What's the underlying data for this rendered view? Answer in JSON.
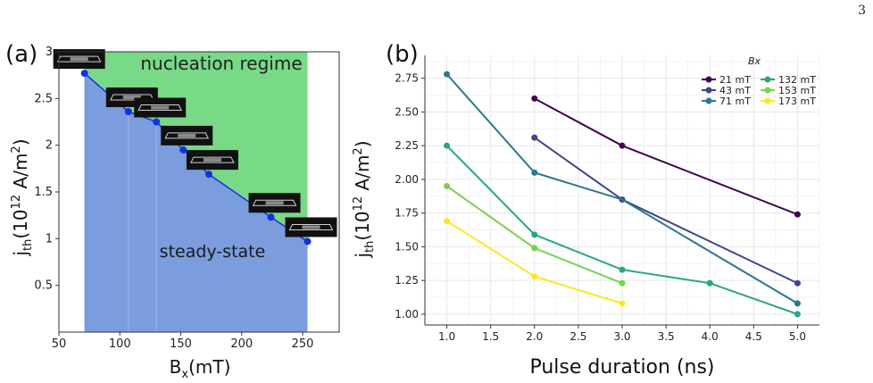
{
  "page_number": "3",
  "chart_data": [
    {
      "panel": "(a)",
      "type": "area",
      "xlabel": "B",
      "xlabel_sub": "x",
      "xlabel_unit": "(mT)",
      "ylabel": "j",
      "ylabel_sub": "th",
      "ylabel_unit": "(10",
      "ylabel_exp": "12",
      "ylabel_unit2": " A/m",
      "ylabel_exp2": "2",
      "ylabel_close": ")",
      "xlim": [
        50,
        280
      ],
      "ylim": [
        0,
        3.0
      ],
      "xticks": [
        "50",
        "100",
        "150",
        "200",
        "250"
      ],
      "yticks": [
        "0.5",
        "1",
        "1.5",
        "2",
        "2.5",
        "3"
      ],
      "upper_region_label": "nucleation regime",
      "lower_region_label": "steady-state",
      "upper_color": "#78d987",
      "lower_color": "#7b9ddd",
      "line_color": "#1530e0",
      "x": [
        71,
        107,
        130,
        152,
        173,
        224,
        254
      ],
      "y": [
        2.77,
        2.36,
        2.25,
        1.95,
        1.69,
        1.23,
        0.97
      ]
    },
    {
      "panel": "(b)",
      "type": "line",
      "xlabel": "Pulse duration (ns)",
      "ylabel": "j",
      "ylabel_sub": "th",
      "ylabel_unit": "(10",
      "ylabel_exp": "12",
      "ylabel_unit2": " A/m",
      "ylabel_exp2": "2",
      "ylabel_close": ")",
      "xlim": [
        0.75,
        5.25
      ],
      "ylim": [
        0.92,
        2.92
      ],
      "xticks": [
        "1.0",
        "1.5",
        "2.0",
        "2.5",
        "3.0",
        "3.5",
        "4.0",
        "4.5",
        "5.0"
      ],
      "yticks": [
        "1.00",
        "1.25",
        "1.50",
        "1.75",
        "2.00",
        "2.25",
        "2.50",
        "2.75"
      ],
      "grid": true,
      "legend_title": "Bx",
      "legend_position": "top-right",
      "series": [
        {
          "name": "21 mT",
          "color": "#440154",
          "x": [
            2,
            3,
            5
          ],
          "y": [
            2.6,
            2.25,
            1.74
          ]
        },
        {
          "name": "43 mT",
          "color": "#414487",
          "x": [
            2,
            3,
            5
          ],
          "y": [
            2.31,
            1.85,
            1.23
          ]
        },
        {
          "name": "71 mT",
          "color": "#2a788e",
          "x": [
            1,
            2,
            3,
            5
          ],
          "y": [
            2.78,
            2.05,
            1.85,
            1.08
          ],
          "markers": [
            1,
            2,
            5
          ]
        },
        {
          "name": "132 mT",
          "color": "#22a884",
          "x": [
            1,
            2,
            3,
            4,
            5
          ],
          "y": [
            2.25,
            1.59,
            1.33,
            1.23,
            1.0
          ]
        },
        {
          "name": "153 mT",
          "color": "#7ad151",
          "x": [
            1,
            2,
            3
          ],
          "y": [
            1.95,
            1.49,
            1.23
          ]
        },
        {
          "name": "173 mT",
          "color": "#fde725",
          "x": [
            1,
            2,
            3
          ],
          "y": [
            1.69,
            1.28,
            1.08
          ]
        }
      ]
    }
  ]
}
